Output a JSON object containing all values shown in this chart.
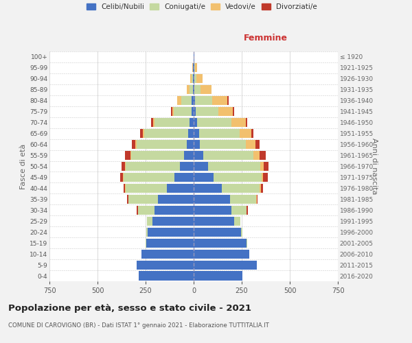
{
  "age_groups": [
    "0-4",
    "5-9",
    "10-14",
    "15-19",
    "20-24",
    "25-29",
    "30-34",
    "35-39",
    "40-44",
    "45-49",
    "50-54",
    "55-59",
    "60-64",
    "65-69",
    "70-74",
    "75-79",
    "80-84",
    "85-89",
    "90-94",
    "95-99",
    "100+"
  ],
  "birth_years": [
    "2016-2020",
    "2011-2015",
    "2006-2010",
    "2001-2005",
    "1996-2000",
    "1991-1995",
    "1986-1990",
    "1981-1985",
    "1976-1980",
    "1971-1975",
    "1966-1970",
    "1961-1965",
    "1956-1960",
    "1951-1955",
    "1946-1950",
    "1941-1945",
    "1936-1940",
    "1931-1935",
    "1926-1930",
    "1921-1925",
    "≤ 1920"
  ],
  "male_celibe": [
    285,
    295,
    270,
    248,
    240,
    215,
    205,
    185,
    140,
    100,
    72,
    50,
    35,
    28,
    22,
    12,
    10,
    4,
    2,
    2,
    0
  ],
  "male_coniugato": [
    0,
    0,
    0,
    2,
    8,
    28,
    85,
    155,
    215,
    265,
    282,
    275,
    262,
    230,
    180,
    90,
    55,
    18,
    8,
    3,
    0
  ],
  "male_vedovo": [
    0,
    0,
    0,
    0,
    0,
    0,
    0,
    0,
    2,
    4,
    4,
    4,
    8,
    8,
    10,
    8,
    20,
    12,
    8,
    2,
    0
  ],
  "male_divorziato": [
    0,
    0,
    0,
    0,
    0,
    0,
    8,
    5,
    9,
    14,
    16,
    28,
    16,
    14,
    10,
    9,
    2,
    2,
    0,
    0,
    0
  ],
  "female_nubile": [
    252,
    330,
    290,
    275,
    245,
    210,
    198,
    188,
    148,
    102,
    75,
    50,
    32,
    28,
    18,
    12,
    8,
    4,
    4,
    3,
    2
  ],
  "female_coniugata": [
    0,
    0,
    0,
    2,
    8,
    32,
    78,
    138,
    196,
    250,
    270,
    262,
    240,
    210,
    180,
    115,
    88,
    30,
    12,
    4,
    0
  ],
  "female_vedova": [
    0,
    0,
    0,
    0,
    0,
    0,
    0,
    2,
    6,
    10,
    18,
    32,
    48,
    62,
    72,
    78,
    78,
    58,
    30,
    12,
    2
  ],
  "female_divorziata": [
    0,
    0,
    0,
    0,
    0,
    0,
    5,
    5,
    12,
    22,
    28,
    32,
    22,
    10,
    10,
    7,
    7,
    2,
    0,
    0,
    0
  ],
  "colors": {
    "celibe": "#4472c4",
    "coniugato": "#c5d9a0",
    "vedovo": "#f2c06e",
    "divorziato": "#c0392b"
  },
  "xlim": 750,
  "title": "Popolazione per età, sesso e stato civile - 2021",
  "subtitle": "COMUNE DI CAROVIGNO (BR) - Dati ISTAT 1° gennaio 2021 - Elaborazione TUTTITALIA.IT",
  "label_femmine": "Femmine",
  "ylabel_left": "Fasce di età",
  "ylabel_right": "Anni di nascita",
  "bg_color": "#f2f2f2",
  "plot_bg_color": "#ffffff",
  "grid_color": "#cccccc",
  "legend_labels": [
    "Celibi/Nubili",
    "Coniugati/e",
    "Vedovi/e",
    "Divorziati/e"
  ]
}
